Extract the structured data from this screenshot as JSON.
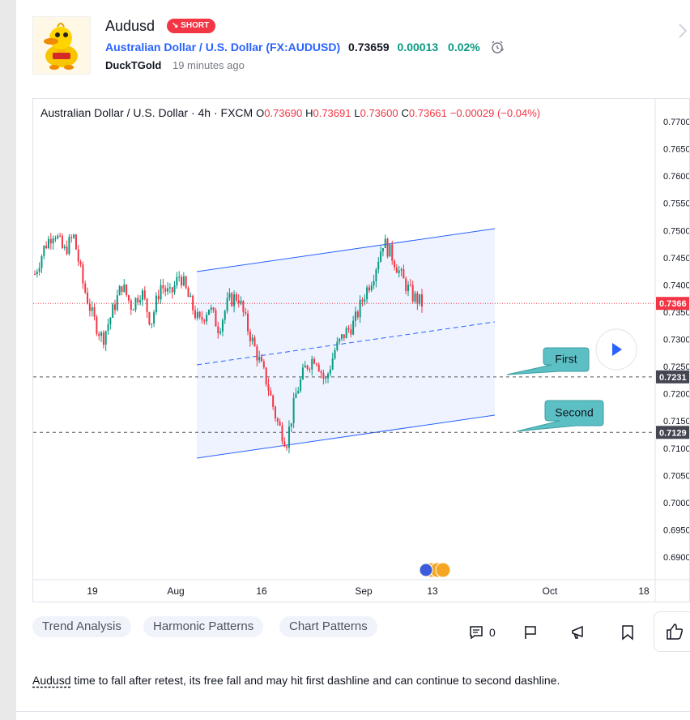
{
  "header": {
    "title": "Audusd",
    "badge": "SHORT",
    "symbol_name": "Australian Dollar / U.S. Dollar",
    "symbol_code": "(FX:AUDUSD)",
    "price": "0.73659",
    "change": "0.00013",
    "change_pct": "0.02%",
    "author": "DuckTGold",
    "time_ago": "19 minutes ago"
  },
  "chart": {
    "legend_title": "Australian Dollar / U.S. Dollar · 4h · FXCM",
    "o_label": "O",
    "o": "0.73690",
    "h_label": "H",
    "h": "0.73691",
    "l_label": "L",
    "l": "0.73600",
    "c_label": "C",
    "c": "0.73661",
    "chg": "−0.00029 (−0.04%)",
    "annotation_first": "First",
    "annotation_second": "Second",
    "price_tag_current": "0.7366",
    "price_tag_first": "0.7231",
    "price_tag_second": "0.7129"
  },
  "chart_data": {
    "type": "candlestick",
    "y_ticks": [
      "0.7700",
      "0.7650",
      "0.7600",
      "0.7550",
      "0.7500",
      "0.7450",
      "0.7400",
      "0.7350",
      "0.7300",
      "0.7250",
      "0.7200",
      "0.7150",
      "0.7100",
      "0.7050",
      "0.7000",
      "0.6950",
      "0.6900"
    ],
    "ylim": [
      0.688,
      0.772
    ],
    "x_ticks": [
      "19",
      "Aug",
      "16",
      "Sep",
      "13",
      "Oct",
      "18"
    ],
    "price_path": [
      0.742,
      0.747,
      0.75,
      0.746,
      0.749,
      0.74,
      0.734,
      0.73,
      0.735,
      0.74,
      0.736,
      0.739,
      0.733,
      0.74,
      0.738,
      0.742,
      0.737,
      0.733,
      0.736,
      0.732,
      0.737,
      0.738,
      0.732,
      0.727,
      0.722,
      0.715,
      0.711,
      0.72,
      0.725,
      0.727,
      0.722,
      0.728,
      0.731,
      0.733,
      0.738,
      0.742,
      0.748,
      0.745,
      0.741,
      0.738,
      0.7366
    ],
    "levels": {
      "current": 0.7366,
      "first": 0.7231,
      "second": 0.7129
    }
  },
  "tags": [
    "Trend Analysis",
    "Harmonic Patterns",
    "Chart Patterns"
  ],
  "comments_count": "0",
  "description": {
    "symbol": "Audusd",
    "text": " time to fall after retest, its free fall and may hit first dashline and can continue to second dashline."
  },
  "colors": {
    "accent": "#2962ff",
    "short": "#f23645",
    "positive": "#089981",
    "annotation": "#5cbfc4"
  }
}
